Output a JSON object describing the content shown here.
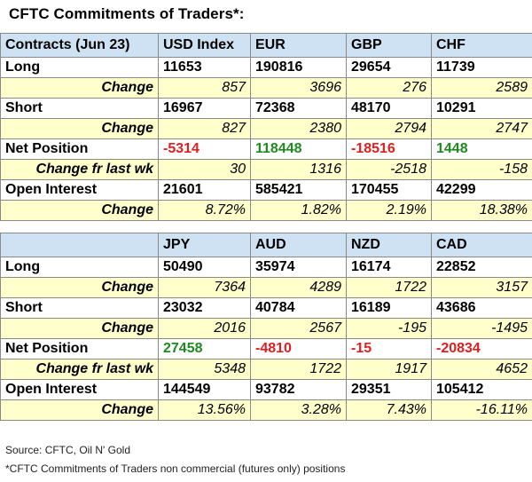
{
  "title": "CFTC Commitments of Traders*:",
  "table1": {
    "header": [
      "Contracts (Jun 23)",
      "USD Index",
      "EUR",
      "GBP",
      "CHF"
    ],
    "long": {
      "label": "Long",
      "values": [
        "11653",
        "190816",
        "29654",
        "11739"
      ]
    },
    "long_change": {
      "label": "Change",
      "values": [
        "857",
        "3696",
        "276",
        "2589"
      ]
    },
    "short": {
      "label": "Short",
      "values": [
        "16967",
        "72368",
        "48170",
        "10291"
      ]
    },
    "short_change": {
      "label": "Change",
      "values": [
        "827",
        "2380",
        "2794",
        "2747"
      ]
    },
    "net": {
      "label": "Net Position",
      "values": [
        "-5314",
        "118448",
        "-18516",
        "1448"
      ]
    },
    "net_change": {
      "label": "Change fr last wk",
      "values": [
        "30",
        "1316",
        "-2518",
        "-158"
      ]
    },
    "oi": {
      "label": "Open Interest",
      "values": [
        "21601",
        "585421",
        "170455",
        "42299"
      ]
    },
    "oi_change": {
      "label": "Change",
      "values": [
        "8.72%",
        "1.82%",
        "2.19%",
        "18.38%"
      ]
    }
  },
  "table2": {
    "header": [
      "",
      "JPY",
      "AUD",
      "NZD",
      "CAD"
    ],
    "long": {
      "label": "Long",
      "values": [
        "50490",
        "35974",
        "16174",
        "22852"
      ]
    },
    "long_change": {
      "label": "Change",
      "values": [
        "7364",
        "4289",
        "1722",
        "3157"
      ]
    },
    "short": {
      "label": "Short",
      "values": [
        "23032",
        "40784",
        "16189",
        "43686"
      ]
    },
    "short_change": {
      "label": "Change",
      "values": [
        "2016",
        "2567",
        "-195",
        "-1495"
      ]
    },
    "net": {
      "label": "Net Position",
      "values": [
        "27458",
        "-4810",
        "-15",
        "-20834"
      ]
    },
    "net_change": {
      "label": "Change fr last wk",
      "values": [
        "5348",
        "1722",
        "1917",
        "4652"
      ]
    },
    "oi": {
      "label": "Open Interest",
      "values": [
        "144549",
        "93782",
        "29351",
        "105412"
      ]
    },
    "oi_change": {
      "label": "Change",
      "values": [
        "13.56%",
        "3.28%",
        "7.43%",
        "-16.11%"
      ]
    }
  },
  "colors": {
    "header_bg": "#cfe2f3",
    "change_bg": "#ffffcc",
    "positive": "#1f8a1f",
    "negative": "#e01e1e"
  },
  "footer": {
    "source": "Source: CFTC, Oil N' Gold",
    "note": "*CFTC Commitments of Traders non commercial (futures only) positions"
  }
}
